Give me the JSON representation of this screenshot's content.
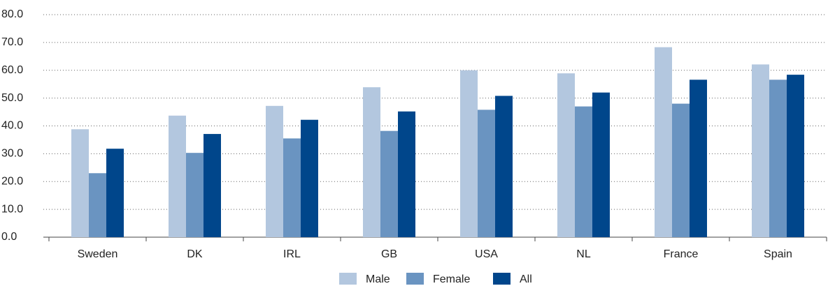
{
  "chart_data": {
    "type": "bar",
    "categories": [
      "Sweden",
      "DK",
      "IRL",
      "GB",
      "USA",
      "NL",
      "France",
      "Spain"
    ],
    "series": [
      {
        "name": "Male",
        "color": "#b3c7df",
        "values": [
          38.8,
          43.7,
          47.2,
          53.9,
          60.0,
          58.9,
          68.3,
          62.1
        ]
      },
      {
        "name": "Female",
        "color": "#6a94c1",
        "values": [
          23.0,
          30.3,
          35.5,
          38.2,
          45.8,
          47.0,
          48.0,
          56.6
        ]
      },
      {
        "name": "All",
        "color": "#00468b",
        "values": [
          31.8,
          37.1,
          42.2,
          45.2,
          50.8,
          52.0,
          56.6,
          58.4
        ]
      }
    ],
    "ylim": [
      0,
      80
    ],
    "yticks": [
      {
        "value": 0,
        "label": "0.0"
      },
      {
        "value": 10,
        "label": "10.0"
      },
      {
        "value": 20,
        "label": "20.0"
      },
      {
        "value": 30,
        "label": "30.0"
      },
      {
        "value": 40,
        "label": "40.0"
      },
      {
        "value": 50,
        "label": "50.0"
      },
      {
        "value": 60,
        "label": "60.0"
      },
      {
        "value": 70,
        "label": "70.0"
      },
      {
        "value": 80,
        "label": "80.0"
      }
    ],
    "grid": true,
    "legend": "bottom"
  }
}
